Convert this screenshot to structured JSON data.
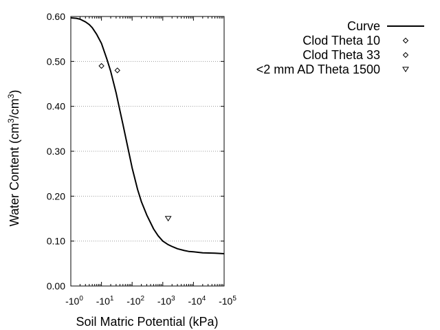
{
  "chart_data": {
    "type": "line",
    "title": "",
    "xlabel": "Soil Matric Potential (kPa)",
    "ylabel_parts": [
      "Water Content (cm",
      "3",
      "/cm",
      "3",
      ")"
    ],
    "x_scale": "log",
    "x_reversed_sign": true,
    "xlim": [
      1,
      100000
    ],
    "ylim": [
      0,
      0.6
    ],
    "y_ticks": [
      0.0,
      0.1,
      0.2,
      0.3,
      0.4,
      0.5,
      0.6
    ],
    "y_tick_labels": [
      "0.00",
      "0.10",
      "0.20",
      "0.30",
      "0.40",
      "0.50",
      "0.60"
    ],
    "x_ticks": [
      1,
      10,
      100,
      1000,
      10000,
      100000
    ],
    "x_tick_labels": [
      {
        "base": "-10",
        "exp": "0"
      },
      {
        "base": "-10",
        "exp": "1"
      },
      {
        "base": "-10",
        "exp": "2"
      },
      {
        "base": "-10",
        "exp": "3"
      },
      {
        "base": "-10",
        "exp": "4"
      },
      {
        "base": "-10",
        "exp": "5"
      }
    ],
    "grid": "horizontal-dotted",
    "legend_position": "right-outside-top",
    "series": [
      {
        "name": "Curve",
        "kind": "line",
        "x": [
          1,
          1.5,
          2,
          3,
          4,
          5,
          7,
          10,
          15,
          20,
          30,
          40,
          50,
          70,
          100,
          150,
          200,
          300,
          500,
          700,
          1000,
          1500,
          2000,
          3000,
          5000,
          7000,
          10000,
          20000,
          50000,
          100000
        ],
        "y": [
          0.597,
          0.596,
          0.594,
          0.588,
          0.582,
          0.575,
          0.56,
          0.54,
          0.505,
          0.478,
          0.43,
          0.39,
          0.36,
          0.313,
          0.263,
          0.215,
          0.188,
          0.158,
          0.127,
          0.112,
          0.1,
          0.092,
          0.088,
          0.083,
          0.079,
          0.077,
          0.076,
          0.074,
          0.073,
          0.072
        ]
      },
      {
        "name": "Clod Theta 10",
        "kind": "diamond",
        "x": [
          10
        ],
        "y": [
          0.49
        ]
      },
      {
        "name": "Clod Theta 33",
        "kind": "diamond",
        "x": [
          33
        ],
        "y": [
          0.48
        ]
      },
      {
        "name": "<2 mm AD Theta 1500",
        "kind": "triangle-down",
        "x": [
          1500
        ],
        "y": [
          0.15
        ]
      }
    ]
  }
}
